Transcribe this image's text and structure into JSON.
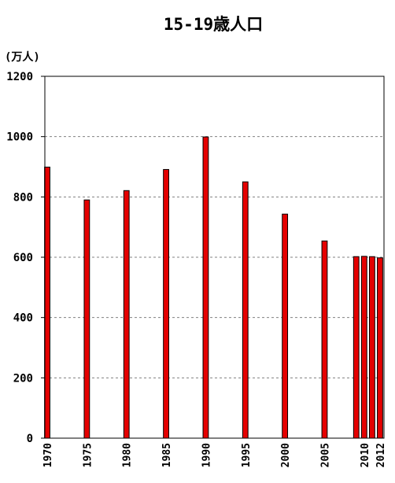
{
  "chart_data": {
    "type": "bar",
    "title": "15-19歳人口",
    "ylabel": "(万人)",
    "xlabel": "",
    "ylim": [
      0,
      1200
    ],
    "yticks": [
      0,
      200,
      400,
      600,
      800,
      1000,
      1200
    ],
    "grid": true,
    "x": [
      1970,
      1975,
      1980,
      1985,
      1990,
      1995,
      2000,
      2005,
      2009,
      2010,
      2011,
      2012
    ],
    "values": [
      899,
      790,
      821,
      891,
      999,
      850,
      743,
      654,
      602,
      603,
      602,
      598
    ],
    "xtick_labels": [
      "1970",
      "1975",
      "1980",
      "1985",
      "1990",
      "1995",
      "2000",
      "2005",
      "2010",
      "2012"
    ],
    "xtick_years": [
      1970,
      1975,
      1980,
      1985,
      1990,
      1995,
      2000,
      2005,
      2010,
      2012
    ],
    "colors": {
      "bar_fill": "#e50000",
      "bar_stroke": "#000000",
      "grid": "#808080",
      "axis": "#000000"
    }
  }
}
